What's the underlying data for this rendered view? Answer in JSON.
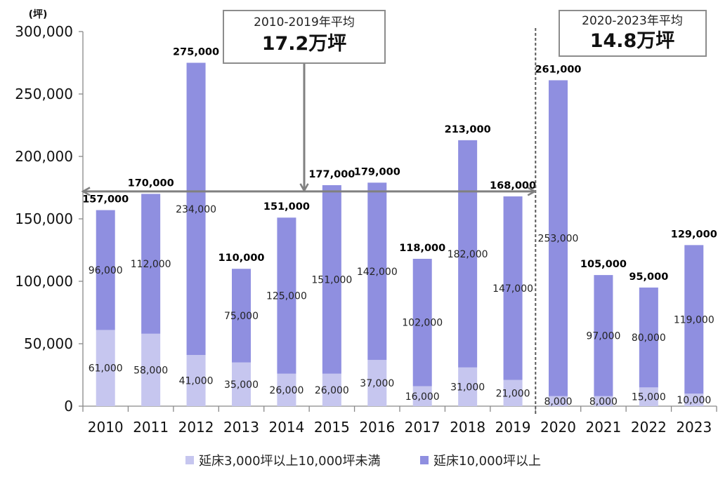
{
  "chart_data": {
    "type": "bar",
    "stacked": true,
    "unit_label": "(坪)",
    "categories": [
      "2010",
      "2011",
      "2012",
      "2013",
      "2014",
      "2015",
      "2016",
      "2017",
      "2018",
      "2019",
      "2020",
      "2021",
      "2022",
      "2023"
    ],
    "series": [
      {
        "name": "延床3,000坪以上10,000坪未満",
        "color": "#c6c6ef",
        "values": [
          61000,
          58000,
          41000,
          35000,
          26000,
          26000,
          37000,
          16000,
          31000,
          21000,
          8000,
          8000,
          15000,
          10000
        ],
        "labels": [
          "61,000",
          "58,000",
          "41,000",
          "35,000",
          "26,000",
          "26,000",
          "37,000",
          "16,000",
          "31,000",
          "21,000",
          "8,000",
          "8,000",
          "15,000",
          "10,000"
        ]
      },
      {
        "name": "延床10,000坪以上",
        "color": "#8f8fe0",
        "values": [
          96000,
          112000,
          234000,
          75000,
          125000,
          151000,
          142000,
          102000,
          182000,
          147000,
          253000,
          97000,
          80000,
          119000
        ],
        "labels": [
          "96,000",
          "112,000",
          "234,000",
          "75,000",
          "125,000",
          "151,000",
          "142,000",
          "102,000",
          "182,000",
          "147,000",
          "253,000",
          "97,000",
          "80,000",
          "119,000"
        ]
      }
    ],
    "totals": [
      157000,
      170000,
      275000,
      110000,
      151000,
      177000,
      179000,
      118000,
      213000,
      168000,
      261000,
      105000,
      95000,
      129000
    ],
    "total_labels": [
      "157,000",
      "170,000",
      "275,000",
      "110,000",
      "151,000",
      "177,000",
      "179,000",
      "118,000",
      "213,000",
      "168,000",
      "261,000",
      "105,000",
      "95,000",
      "129,000"
    ],
    "ylim": [
      0,
      300000
    ],
    "yticks": [
      0,
      50000,
      100000,
      150000,
      200000,
      250000,
      300000
    ],
    "ytick_labels": [
      "0",
      "50,000",
      "100,000",
      "150,000",
      "200,000",
      "250,000",
      "300,000"
    ],
    "grid": false,
    "legend_position": "bottom",
    "period_averages": [
      {
        "period_label": "2010-2019年平均",
        "value_label": "17.2万坪",
        "years": [
          2010,
          2019
        ],
        "average": 172000
      },
      {
        "period_label": "2020-2023年平均",
        "value_label": "14.8万坪"
      }
    ],
    "colors": {
      "axis": "#898989",
      "arrow": "#808080",
      "divider": "#595959",
      "box_border": "#8c8c8c"
    }
  }
}
